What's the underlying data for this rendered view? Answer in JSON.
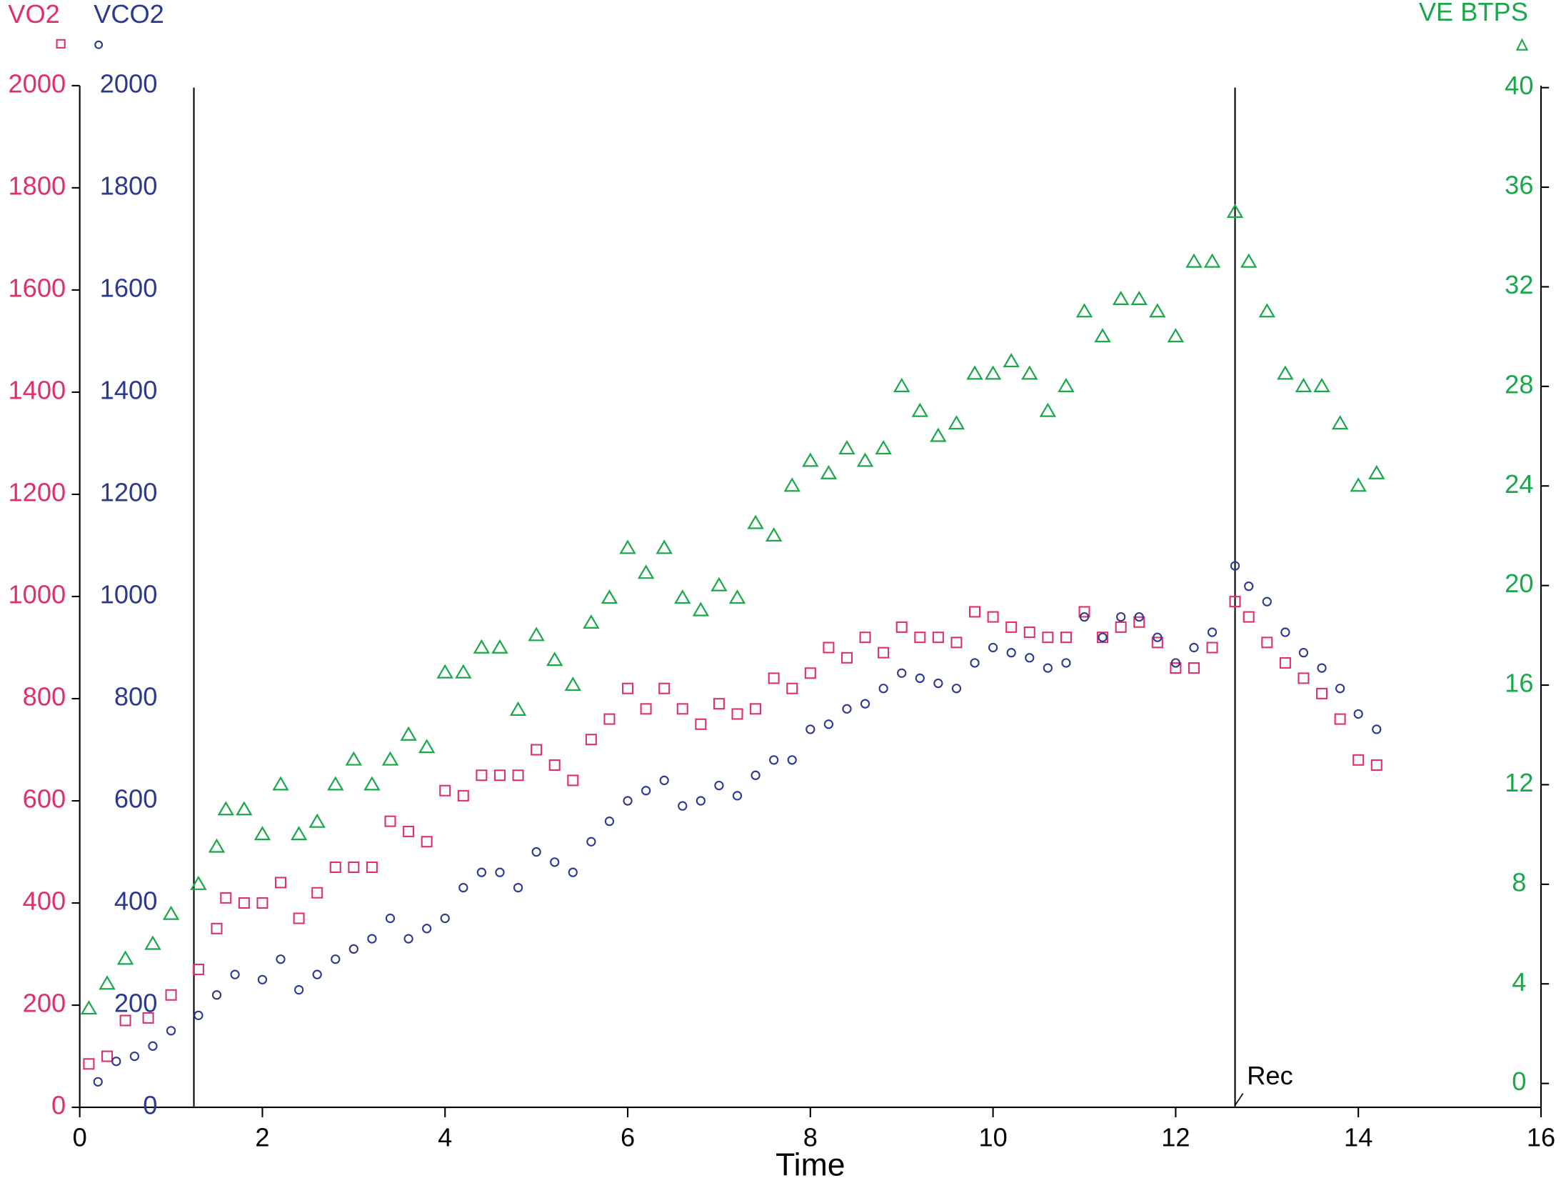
{
  "chart_data": {
    "type": "scatter",
    "xlabel": "Time",
    "xlim": [
      0,
      16
    ],
    "xticks": [
      0,
      2,
      4,
      6,
      8,
      10,
      12,
      14,
      16
    ],
    "ylim": [
      0,
      2000
    ],
    "yticks": [
      0,
      200,
      400,
      600,
      800,
      1000,
      1200,
      1400,
      1600,
      1800,
      2000
    ],
    "y2lim": [
      0,
      40
    ],
    "y2ticks": [
      0,
      4,
      8,
      12,
      16,
      20,
      24,
      28,
      32,
      36,
      40
    ],
    "vlines": [
      1.25,
      12.65
    ],
    "annotation": "Rec",
    "series": [
      {
        "name": "VO2",
        "color": "#e0306a",
        "marker": "square",
        "x": [
          0.1,
          0.3,
          0.5,
          0.75,
          1.0,
          1.3,
          1.5,
          1.6,
          1.8,
          2.0,
          2.2,
          2.4,
          2.6,
          2.8,
          3.0,
          3.2,
          3.4,
          3.6,
          3.8,
          4.0,
          4.2,
          4.4,
          4.6,
          4.8,
          5.0,
          5.2,
          5.4,
          5.6,
          5.8,
          6.0,
          6.2,
          6.4,
          6.6,
          6.8,
          7.0,
          7.2,
          7.4,
          7.6,
          7.8,
          8.0,
          8.2,
          8.4,
          8.6,
          8.8,
          9.0,
          9.2,
          9.4,
          9.6,
          9.8,
          10.0,
          10.2,
          10.4,
          10.6,
          10.8,
          11.0,
          11.2,
          11.4,
          11.6,
          11.8,
          12.0,
          12.2,
          12.4,
          12.65,
          12.8,
          13.0,
          13.2,
          13.4,
          13.6,
          13.8,
          14.0,
          14.2
        ],
        "values": [
          85,
          100,
          170,
          175,
          220,
          270,
          350,
          410,
          400,
          400,
          440,
          370,
          420,
          470,
          470,
          470,
          560,
          540,
          520,
          620,
          610,
          650,
          650,
          650,
          700,
          670,
          640,
          720,
          760,
          820,
          780,
          820,
          780,
          750,
          790,
          770,
          780,
          840,
          820,
          850,
          900,
          880,
          920,
          890,
          940,
          920,
          920,
          910,
          970,
          960,
          940,
          930,
          920,
          920,
          970,
          920,
          940,
          950,
          910,
          860,
          860,
          900,
          990,
          960,
          910,
          870,
          840,
          810,
          760,
          680,
          670
        ]
      },
      {
        "name": "VCO2",
        "color": "#2b3a8f",
        "marker": "circle",
        "x": [
          0.2,
          0.4,
          0.6,
          0.8,
          1.0,
          1.3,
          1.5,
          1.7,
          2.0,
          2.2,
          2.4,
          2.6,
          2.8,
          3.0,
          3.2,
          3.4,
          3.6,
          3.8,
          4.0,
          4.2,
          4.4,
          4.6,
          4.8,
          5.0,
          5.2,
          5.4,
          5.6,
          5.8,
          6.0,
          6.2,
          6.4,
          6.6,
          6.8,
          7.0,
          7.2,
          7.4,
          7.6,
          7.8,
          8.0,
          8.2,
          8.4,
          8.6,
          8.8,
          9.0,
          9.2,
          9.4,
          9.6,
          9.8,
          10.0,
          10.2,
          10.4,
          10.6,
          10.8,
          11.0,
          11.2,
          11.4,
          11.6,
          11.8,
          12.0,
          12.2,
          12.4,
          12.65,
          12.8,
          13.0,
          13.2,
          13.4,
          13.6,
          13.8,
          14.0,
          14.2
        ],
        "values": [
          50,
          90,
          100,
          120,
          150,
          180,
          220,
          260,
          250,
          290,
          230,
          260,
          290,
          310,
          330,
          370,
          330,
          350,
          370,
          430,
          460,
          460,
          430,
          500,
          480,
          460,
          520,
          560,
          600,
          620,
          640,
          590,
          600,
          630,
          610,
          650,
          680,
          680,
          740,
          750,
          780,
          790,
          820,
          850,
          840,
          830,
          820,
          870,
          900,
          890,
          880,
          860,
          870,
          960,
          920,
          960,
          960,
          920,
          870,
          900,
          930,
          1060,
          1020,
          990,
          930,
          890,
          860,
          820,
          770,
          740
        ]
      },
      {
        "name": "VE BTPS",
        "color": "#1aa84a",
        "marker": "triangle",
        "axis": "y2",
        "x": [
          0.1,
          0.3,
          0.5,
          0.8,
          1.0,
          1.3,
          1.5,
          1.6,
          1.8,
          2.0,
          2.2,
          2.4,
          2.6,
          2.8,
          3.0,
          3.2,
          3.4,
          3.6,
          3.8,
          4.0,
          4.2,
          4.4,
          4.6,
          4.8,
          5.0,
          5.2,
          5.4,
          5.6,
          5.8,
          6.0,
          6.2,
          6.4,
          6.6,
          6.8,
          7.0,
          7.2,
          7.4,
          7.6,
          7.8,
          8.0,
          8.2,
          8.4,
          8.6,
          8.8,
          9.0,
          9.2,
          9.4,
          9.6,
          9.8,
          10.0,
          10.2,
          10.4,
          10.6,
          10.8,
          11.0,
          11.2,
          11.4,
          11.6,
          11.8,
          12.0,
          12.2,
          12.4,
          12.65,
          12.8,
          13.0,
          13.2,
          13.4,
          13.6,
          13.8,
          14.0,
          14.2
        ],
        "values": [
          3,
          4,
          5,
          5.6,
          6.8,
          8,
          9.5,
          11,
          11,
          10,
          12,
          10,
          10.5,
          12,
          13,
          12,
          13,
          14,
          13.5,
          16.5,
          16.5,
          17.5,
          17.5,
          15,
          18,
          17,
          16,
          18.5,
          19.5,
          21.5,
          20.5,
          21.5,
          19.5,
          19,
          20,
          19.5,
          22.5,
          22,
          24,
          25,
          24.5,
          25.5,
          25,
          25.5,
          28,
          27,
          26,
          26.5,
          28.5,
          28.5,
          29,
          28.5,
          27,
          28,
          31,
          30,
          31.5,
          31.5,
          31,
          30,
          33,
          33,
          35,
          33,
          31,
          28.5,
          28,
          28,
          26.5,
          24,
          24.5
        ]
      }
    ]
  }
}
